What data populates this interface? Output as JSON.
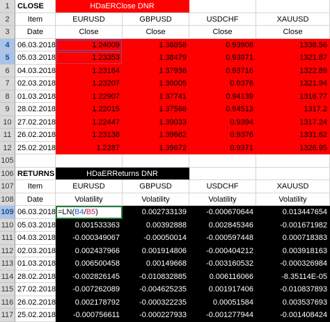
{
  "colors": {
    "close_header": "#ff0000",
    "returns_header": "#000000",
    "selection": "#1b6fd8",
    "edit_border": "#1f7a3a"
  },
  "close": {
    "section_label": "CLOSE",
    "title": "HDaERClose DNR",
    "item_label": "Item",
    "date_label": "Date",
    "columns": [
      "EURUSD",
      "GBPUSD",
      "USDCHF",
      "XAUUSD"
    ],
    "subheader": "Close",
    "rows": [
      {
        "row": "4",
        "date": "06.03.2018",
        "values": [
          "1.24009",
          "1.38858",
          "0.93908",
          "1338.56"
        ]
      },
      {
        "row": "5",
        "date": "05.03.2018",
        "values": [
          "1.23353",
          "1.38479",
          "0.93971",
          "1321.87"
        ]
      },
      {
        "row": "6",
        "date": "04.03.2018",
        "values": [
          "1.23164",
          "1.37936",
          "0.93716",
          "1322.89"
        ]
      },
      {
        "row": "7",
        "date": "02.03.2018",
        "values": [
          "1.23207",
          "1.38005",
          "0.9376",
          "1321.94"
        ]
      },
      {
        "row": "8",
        "date": "01.03.2018",
        "values": [
          "1.22907",
          "1.37741",
          "0.94139",
          "1316.77"
        ]
      },
      {
        "row": "9",
        "date": "28.02.2018",
        "values": [
          "1.22015",
          "1.37568",
          "0.94513",
          "1317.2"
        ]
      },
      {
        "row": "10",
        "date": "27.02.2018",
        "values": [
          "1.22447",
          "1.39033",
          "0.9394",
          "1317.24"
        ]
      },
      {
        "row": "11",
        "date": "26.02.2018",
        "values": [
          "1.23138",
          "1.39682",
          "0.9376",
          "1331.62"
        ]
      },
      {
        "row": "12",
        "date": "25.02.2018",
        "values": [
          "1.2287",
          "1.39672",
          "0.9371",
          "1326.95"
        ]
      }
    ]
  },
  "returns": {
    "section_label": "RETURNS",
    "title": "HDaERReturns DNR",
    "item_label": "Item",
    "date_label": "Date",
    "columns": [
      "EURUSD",
      "GBPUSD",
      "USDCHF",
      "XAUUSD"
    ],
    "subheader": "Volatility",
    "formula_prefix": "=LN(",
    "formula_ref1": "B4",
    "formula_sep": "/",
    "formula_ref2": "B5",
    "formula_suffix": ")",
    "first_row": {
      "row": "109",
      "date": "06.03.2018",
      "values": [
        "0.002733139",
        "-0.000670644",
        "0.013447654"
      ]
    },
    "rows": [
      {
        "row": "110",
        "date": "05.03.2018",
        "values": [
          "0.001533363",
          "0.00392888",
          "0.002845346",
          "-0.001671982"
        ]
      },
      {
        "row": "111",
        "date": "04.03.2018",
        "values": [
          "-0.000349067",
          "-0.00050014",
          "-0.000597448",
          "0.000718383"
        ]
      },
      {
        "row": "112",
        "date": "02.03.2018",
        "values": [
          "0.002437966",
          "0.001914806",
          "-0.000404212",
          "0.003918163"
        ]
      },
      {
        "row": "113",
        "date": "01.03.2018",
        "values": [
          "0.006500458",
          "0.00149668",
          "-0.003160532",
          "-0.000326984"
        ]
      },
      {
        "row": "114",
        "date": "28.02.2018",
        "values": [
          "-0.002826145",
          "-0.010832885",
          "0.006116066",
          "-8.35114E-05"
        ]
      },
      {
        "row": "115",
        "date": "27.02.2018",
        "values": [
          "-0.007262089",
          "-0.004625235",
          "0.001917406",
          "-0.010837893"
        ]
      },
      {
        "row": "116",
        "date": "26.02.2018",
        "values": [
          "0.002178792",
          "-0.000322235",
          "0.00051584",
          "0.003537693"
        ]
      },
      {
        "row": "117",
        "date": "25.02.2018",
        "values": [
          "-0.000756611",
          "-0.000227933",
          "-0.001277944",
          "-0.001408424"
        ]
      }
    ]
  },
  "row_numbers": {
    "r1": "1",
    "r2": "2",
    "r3": "3",
    "r13": "105",
    "r106": "106",
    "r107": "107",
    "r108": "108"
  }
}
